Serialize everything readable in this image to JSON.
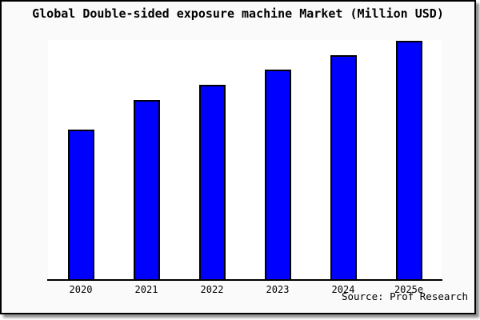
{
  "chart_data": {
    "type": "bar",
    "title": "Global Double-sided exposure machine Market (Million USD)",
    "categories": [
      "2020",
      "2021",
      "2022",
      "2023",
      "2024",
      "2025e"
    ],
    "values": [
      63,
      75.3,
      81.7,
      88,
      94,
      100
    ],
    "values_note": "relative bar heights in % of tallest (2025e) bar; y-axis has no scale or labels in source image",
    "xlabel": "",
    "ylabel": "",
    "grid": false,
    "legend": false,
    "bar_color": "#0000ff",
    "bar_border_color": "#000000",
    "plot_background": "#ffffff",
    "canvas_background": "#fafafa"
  },
  "source_label": "Source: Prof Research"
}
